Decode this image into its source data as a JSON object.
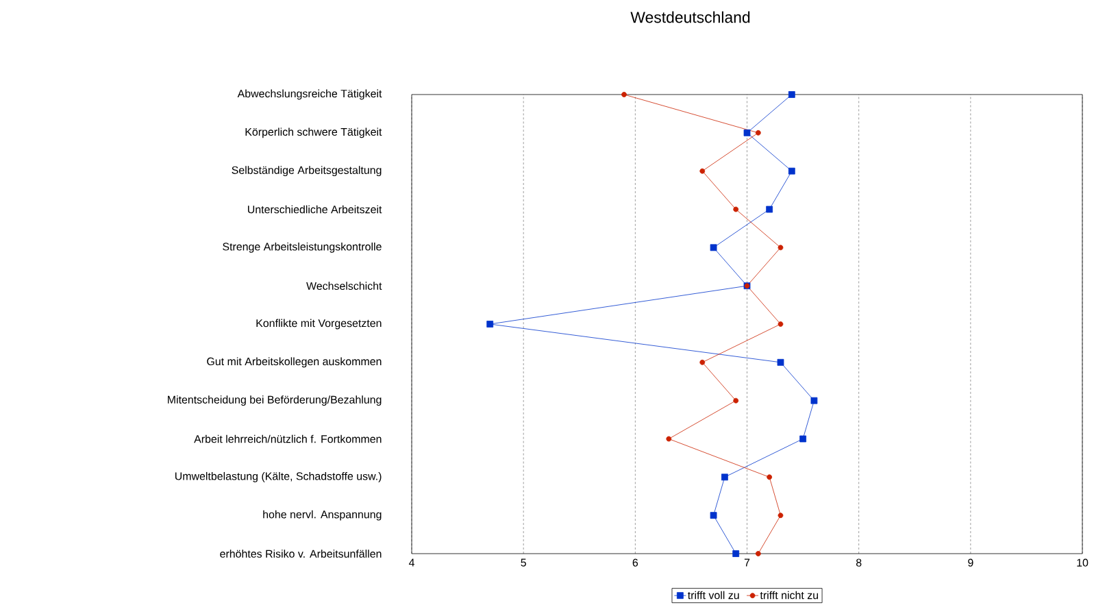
{
  "chart_data": {
    "type": "line",
    "orientation": "horizontal",
    "title": "Westdeutschland",
    "categories": [
      "Abwechslungsreiche Tätigkeit",
      "Körperlich schwere Tätigkeit",
      "Selbständige Arbeitsgestaltung",
      "Unterschiedliche Arbeitszeit",
      "Strenge Arbeitsleistungskontrolle",
      "Wechselschicht",
      "Konflikte mit Vorgesetzten",
      "Gut mit Arbeitskollegen auskommen",
      "Mitentscheidung bei Beförderung/Bezahlung",
      "Arbeit lehrreich/nützlich f. Fortkommen",
      "Umweltbelastung (Kälte, Schadstoffe usw.)",
      "hohe nervl. Anspannung",
      "erhöhtes Risiko v. Arbeitsunfällen"
    ],
    "series": [
      {
        "name": "trifft voll zu",
        "color": "#0033cc",
        "marker": "square",
        "values": [
          7.4,
          7.0,
          7.4,
          7.2,
          6.7,
          7.0,
          4.7,
          7.3,
          7.6,
          7.5,
          6.8,
          6.7,
          6.9
        ]
      },
      {
        "name": "trifft nicht zu",
        "color": "#cc2200",
        "marker": "circle",
        "values": [
          5.9,
          7.1,
          6.6,
          6.9,
          7.3,
          7.0,
          7.3,
          6.6,
          6.9,
          6.3,
          7.2,
          7.3,
          7.1
        ]
      }
    ],
    "xlim": [
      4,
      10
    ],
    "xticks": [
      4,
      5,
      6,
      7,
      8,
      9,
      10
    ],
    "grid": "x",
    "legend": "bottom",
    "line_style": "solid"
  }
}
